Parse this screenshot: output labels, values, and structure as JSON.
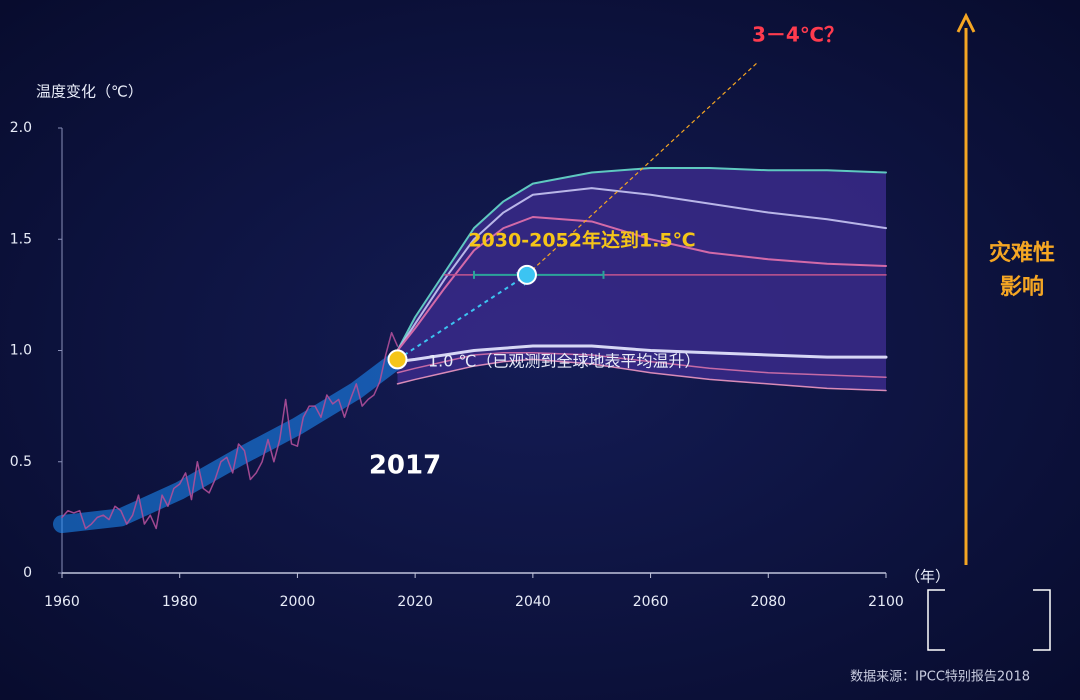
{
  "chart_data": {
    "type": "line",
    "y_label": "温度变化（℃）",
    "x_label": "（年）",
    "xlim": [
      1960,
      2100
    ],
    "xticks": [
      1960,
      1980,
      2000,
      2020,
      2040,
      2060,
      2080,
      2100
    ],
    "ylim": [
      0,
      2
    ],
    "yticks": [
      0,
      0.5,
      {
        "value": 1,
        "label": "1.0"
      },
      1.5,
      {
        "value": 2,
        "label": "2.0"
      }
    ],
    "band_color": "#3a2a8a",
    "series": [
      {
        "color": "#1e90ff",
        "x": [
          1960,
          1970,
          1980,
          1990,
          2000,
          2010,
          2017
        ],
        "values": [
          0.22,
          0.25,
          0.37,
          0.52,
          0.66,
          0.82,
          0.96
        ]
      },
      {
        "color": "#b04f9a",
        "x": [
          1960,
          1961,
          1962,
          1963,
          1964,
          1965,
          1966,
          1967,
          1968,
          1969,
          1970,
          1971,
          1972,
          1973,
          1974,
          1975,
          1976,
          1977,
          1978,
          1979,
          1980,
          1981,
          1982,
          1983,
          1984,
          1985,
          1986,
          1987,
          1988,
          1989,
          1990,
          1991,
          1992,
          1993,
          1994,
          1995,
          1996,
          1997,
          1998,
          1999,
          2000,
          2001,
          2002,
          2003,
          2004,
          2005,
          2006,
          2007,
          2008,
          2009,
          2010,
          2011,
          2012,
          2013,
          2014,
          2015,
          2016,
          2017
        ],
        "values": [
          0.25,
          0.28,
          0.27,
          0.28,
          0.2,
          0.22,
          0.25,
          0.26,
          0.24,
          0.3,
          0.28,
          0.22,
          0.26,
          0.35,
          0.22,
          0.26,
          0.2,
          0.35,
          0.3,
          0.38,
          0.4,
          0.45,
          0.33,
          0.5,
          0.38,
          0.36,
          0.42,
          0.5,
          0.52,
          0.45,
          0.58,
          0.55,
          0.42,
          0.45,
          0.5,
          0.6,
          0.5,
          0.6,
          0.78,
          0.58,
          0.57,
          0.7,
          0.75,
          0.75,
          0.7,
          0.8,
          0.76,
          0.78,
          0.7,
          0.78,
          0.85,
          0.75,
          0.78,
          0.8,
          0.86,
          0.98,
          1.08,
          1.02
        ]
      },
      {
        "color": "#5fc9c0",
        "x": [
          2017,
          2020,
          2025,
          2030,
          2035,
          2040,
          2050,
          2060,
          2070,
          2080,
          2090,
          2100
        ],
        "values": [
          1.0,
          1.15,
          1.35,
          1.55,
          1.67,
          1.75,
          1.8,
          1.82,
          1.82,
          1.81,
          1.81,
          1.8
        ]
      },
      {
        "color": "#b9b6e8",
        "x": [
          2017,
          2020,
          2025,
          2030,
          2035,
          2040,
          2050,
          2060,
          2070,
          2080,
          2090,
          2100
        ],
        "values": [
          1.0,
          1.12,
          1.32,
          1.5,
          1.62,
          1.7,
          1.73,
          1.7,
          1.66,
          1.62,
          1.59,
          1.55
        ]
      },
      {
        "color": "#d36aa8",
        "x": [
          2017,
          2020,
          2025,
          2030,
          2035,
          2040,
          2050,
          2060,
          2070,
          2080,
          2090,
          2100
        ],
        "values": [
          1.0,
          1.1,
          1.28,
          1.45,
          1.55,
          1.6,
          1.58,
          1.5,
          1.44,
          1.41,
          1.39,
          1.38
        ]
      },
      {
        "color": "#d7d7f5",
        "x": [
          2017,
          2020,
          2025,
          2030,
          2035,
          2040,
          2050,
          2060,
          2070,
          2080,
          2090,
          2100
        ],
        "values": [
          0.95,
          0.96,
          0.98,
          1.0,
          1.01,
          1.02,
          1.02,
          1.0,
          0.99,
          0.98,
          0.97,
          0.97
        ]
      },
      {
        "color": "#c56aa6",
        "x": [
          2017,
          2020,
          2025,
          2030,
          2035,
          2040,
          2050,
          2060,
          2070,
          2080,
          2090,
          2100
        ],
        "values": [
          0.9,
          0.92,
          0.95,
          0.98,
          0.99,
          0.99,
          0.98,
          0.95,
          0.92,
          0.9,
          0.89,
          0.88
        ]
      },
      {
        "color": "#d98bb8",
        "x": [
          2017,
          2020,
          2025,
          2030,
          2035,
          2040,
          2050,
          2060,
          2070,
          2080,
          2090,
          2100
        ],
        "values": [
          0.85,
          0.87,
          0.9,
          0.93,
          0.95,
          0.96,
          0.94,
          0.9,
          0.87,
          0.85,
          0.83,
          0.82
        ]
      },
      {
        "color": "#c2558f",
        "x": [
          2025,
          2100
        ],
        "values": [
          1.34,
          1.34
        ]
      }
    ],
    "range": {
      "x": [
        2030,
        2052
      ],
      "y": 1.34,
      "color": "#2aa39a"
    },
    "markers": [
      {
        "x": 2017,
        "y": 0.96,
        "color": "#f5c518"
      },
      {
        "x": 2039,
        "y": 1.34,
        "color": "#3cc4f2"
      }
    ],
    "annotations": [
      "3－4℃？",
      "2030-2052年达到1.5℃",
      "1.0 ℃（已观测到全球地表平均温升）",
      "2017"
    ],
    "side_label": [
      "灾难性",
      "影响"
    ],
    "source": "数据来源：IPCC特别报告2018"
  }
}
